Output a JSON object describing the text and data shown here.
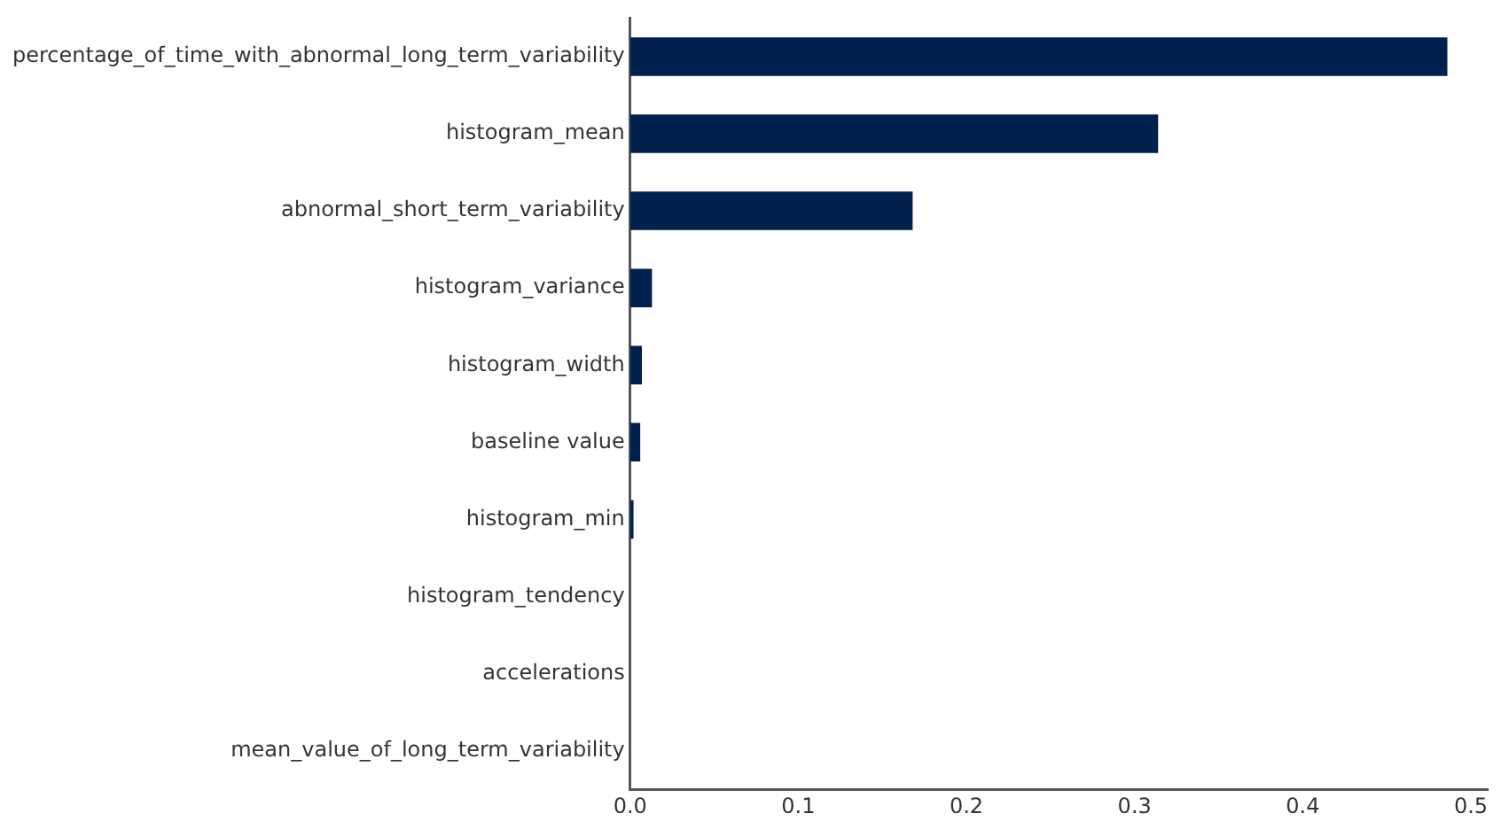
{
  "chart_data": {
    "type": "bar",
    "orientation": "horizontal",
    "categories": [
      "percentage_of_time_with_abnormal_long_term_variability",
      "histogram_mean",
      "abnormal_short_term_variability",
      "histogram_variance",
      "histogram_width",
      "baseline value",
      "histogram_min",
      "histogram_tendency",
      "accelerations",
      "mean_value_of_long_term_variability"
    ],
    "values": [
      0.486,
      0.314,
      0.168,
      0.013,
      0.007,
      0.006,
      0.002,
      0,
      0,
      0
    ],
    "color": "#00214d",
    "xlim": [
      0,
      0.51
    ],
    "xticks": [
      {
        "value": 0,
        "label": "0.0"
      },
      0.1,
      0.2,
      0.3,
      0.4,
      0.5
    ],
    "grid": false,
    "legend": false
  }
}
